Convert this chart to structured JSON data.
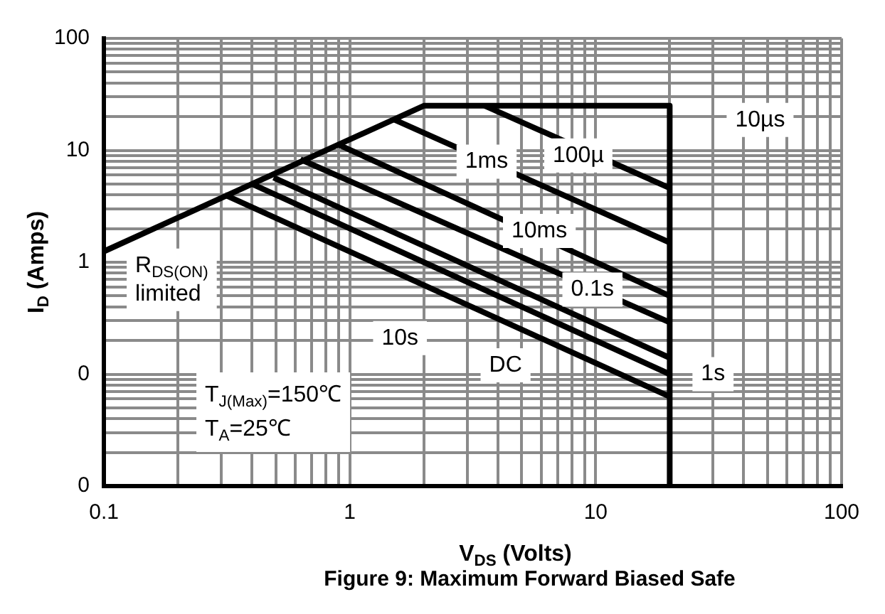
{
  "chart_data": {
    "type": "line",
    "xlabel": "V$_{DS}$ (Volts)",
    "ylabel": "I$_{D}$ (Amps)",
    "log": "xy",
    "grid": true,
    "marker": "none",
    "line_style": "solid",
    "xlim": [
      0.1,
      100
    ],
    "xticks": [
      0.1,
      1,
      10,
      100
    ],
    "ylim": [
      0.01,
      100
    ],
    "yticks": [
      {
        "value": 0.01,
        "label": "0"
      },
      {
        "value": 0.1,
        "label": "0"
      },
      1,
      10,
      100
    ],
    "series": [
      {
        "color": "#000000",
        "x": [
          0.1,
          2,
          20,
          20
        ],
        "values": [
          1.25,
          25,
          25,
          0.01
        ]
      },
      {
        "color": "#000000",
        "x": [
          3.54,
          20
        ],
        "values": [
          25,
          4.6
        ]
      },
      {
        "color": "#000000",
        "x": [
          1.5,
          20
        ],
        "values": [
          19,
          1.5
        ]
      },
      {
        "color": "#000000",
        "x": [
          0.91,
          20
        ],
        "values": [
          11.1,
          0.5
        ]
      },
      {
        "color": "#000000",
        "x": [
          0.63,
          20
        ],
        "values": [
          8.3,
          0.29
        ]
      },
      {
        "color": "#000000",
        "x": [
          0.49,
          20
        ],
        "values": [
          5.7,
          0.14
        ]
      },
      {
        "color": "#000000",
        "x": [
          0.4,
          20
        ],
        "values": [
          5,
          0.1
        ]
      },
      {
        "color": "#000000",
        "x": [
          0.31,
          20
        ],
        "values": [
          4,
          0.063
        ]
      }
    ],
    "annotations": [
      "10µs",
      {
        "text": "100µ",
        "x": 8.5,
        "y": 9
      },
      {
        "text": "1ms",
        "x": 3.6,
        "y": 7.9
      },
      {
        "text": "10ms",
        "x": 5.9,
        "y": 1.9
      },
      {
        "text": "0.1s",
        "x": 9.7,
        "y": 0.57
      },
      {
        "text": "1s",
        "x": 30,
        "y": 0.1
      },
      {
        "text": "DC",
        "x": 4.3,
        "y": 0.12
      },
      {
        "text": "10s",
        "x": 1.6,
        "y": 0.21
      },
      "R$_{DS(ON)}$ limited",
      "T$_{J(Max)}$=150℃",
      "T$_{A}$=25℃",
      "Figure 9: Maximum Forward Biased Safe"
    ]
  }
}
